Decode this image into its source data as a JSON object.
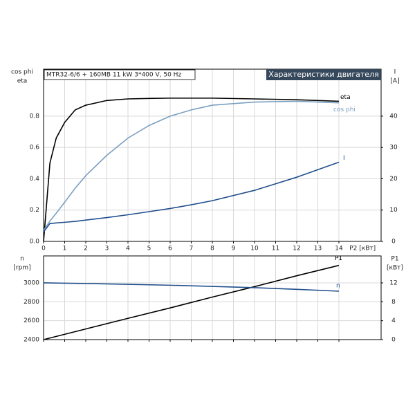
{
  "chart_data": [
    {
      "type": "line",
      "title": "MTR32-6/6 + 160MB   11 kW   3*400 V, 50 Hz",
      "subtitle": "Характеристики двигателя",
      "ylabel": [
        "cos phi",
        "eta"
      ],
      "y2label": [
        "I",
        "[A]"
      ],
      "xlabel": "P2 [кВт]",
      "x": [
        0,
        0.3,
        0.6,
        1,
        1.5,
        2,
        3,
        4,
        5,
        6,
        7,
        8,
        10,
        12,
        14
      ],
      "xlim": [
        0,
        16
      ],
      "xticks": [
        0,
        1,
        2,
        3,
        4,
        5,
        6,
        7,
        8,
        9,
        10,
        11,
        12,
        13,
        14
      ],
      "ylim": [
        0,
        1.1
      ],
      "yticks": [
        {
          "value": 0,
          "label": "0.0"
        },
        0.2,
        0.4,
        0.6,
        0.8
      ],
      "y2lim": [
        0,
        55
      ],
      "y2ticks": [
        0,
        10,
        20,
        30,
        40
      ],
      "grid": true,
      "series": [
        {
          "name": "eta",
          "color": "#000000",
          "values": [
            0,
            0.5,
            0.66,
            0.76,
            0.84,
            0.87,
            0.9,
            0.91,
            0.913,
            0.915,
            0.915,
            0.915,
            0.91,
            0.905,
            0.895
          ]
        },
        {
          "name": "cos phi",
          "color": "#7a9fc0",
          "values": [
            0.07,
            0.13,
            0.18,
            0.25,
            0.34,
            0.42,
            0.55,
            0.66,
            0.74,
            0.8,
            0.84,
            0.87,
            0.89,
            0.895,
            0.885
          ]
        },
        {
          "name": "I",
          "color": "#1f4e8c",
          "axis": "y2",
          "values": [
            3,
            5.7,
            5.9,
            6.1,
            6.4,
            6.8,
            7.6,
            8.5,
            9.5,
            10.5,
            11.7,
            13,
            16.3,
            20.5,
            25.3
          ]
        }
      ]
    },
    {
      "type": "line",
      "ylabel": [
        "n",
        "[rpm]"
      ],
      "y2label": [
        "P1",
        "[кВт]"
      ],
      "x": [
        0,
        2,
        4,
        6,
        8,
        10,
        12,
        14
      ],
      "xlim": [
        0,
        16
      ],
      "xticks": [
        0,
        1,
        2,
        3,
        4,
        5,
        6,
        7,
        8,
        9,
        10,
        11,
        12,
        13,
        14
      ],
      "ylim": [
        2400,
        3285
      ],
      "yticks": [
        2400,
        2600,
        2800,
        3000
      ],
      "y2lim": [
        0,
        17.7
      ],
      "y2ticks": [
        0,
        4,
        8,
        12
      ],
      "grid": true,
      "series": [
        {
          "name": "P1",
          "color": "#000000",
          "axis": "y2",
          "values": [
            0,
            2.25,
            4.5,
            6.7,
            9,
            11.2,
            13.5,
            15.7
          ]
        },
        {
          "name": "n",
          "color": "#1f4e8c",
          "values": [
            3000,
            2993,
            2985,
            2975,
            2963,
            2949,
            2932,
            2912
          ]
        }
      ]
    }
  ]
}
